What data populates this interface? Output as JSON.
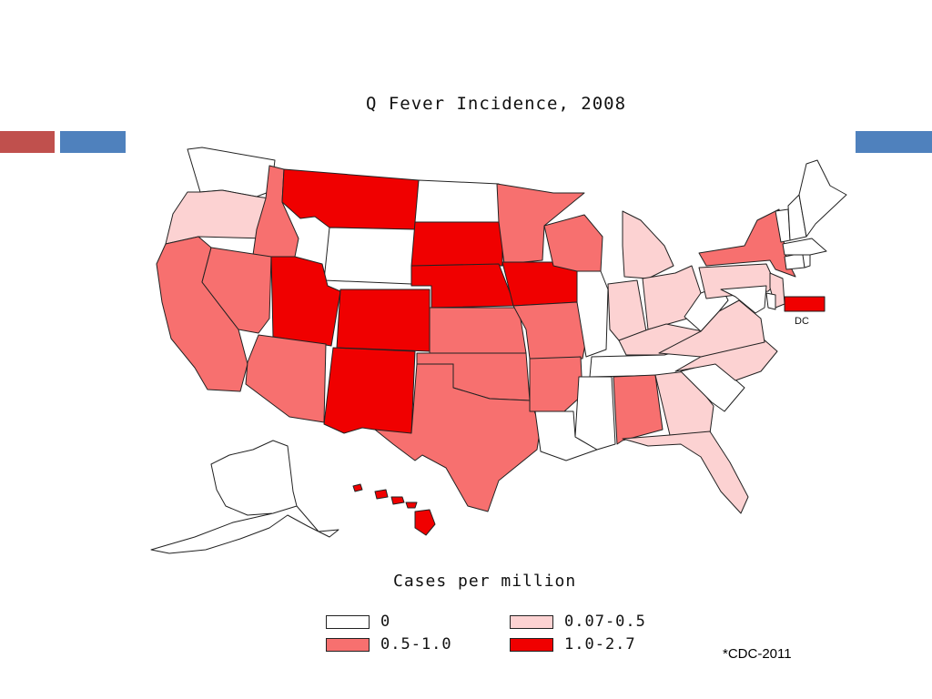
{
  "colors": {
    "zero": "#ffffff",
    "low": "#fcd2d2",
    "mid": "#f7706f",
    "high": "#f00000",
    "deco_red": "#c0504d",
    "deco_blue": "#4f81bd"
  },
  "map": {
    "title": "Q Fever Incidence, 2008",
    "dc_label": "DC"
  },
  "legend": {
    "title": "Cases per million",
    "items": [
      {
        "label": "0",
        "category": "zero"
      },
      {
        "label": "0.07-0.5",
        "category": "low"
      },
      {
        "label": "0.5-1.0",
        "category": "mid"
      },
      {
        "label": "1.0-2.7",
        "category": "high"
      }
    ]
  },
  "source": "*CDC-2011",
  "states": [
    {
      "name": "Washington",
      "category": "zero"
    },
    {
      "name": "Oregon",
      "category": "low"
    },
    {
      "name": "California",
      "category": "mid"
    },
    {
      "name": "Idaho",
      "category": "mid"
    },
    {
      "name": "Nevada",
      "category": "mid"
    },
    {
      "name": "Montana",
      "category": "high"
    },
    {
      "name": "Wyoming",
      "category": "zero"
    },
    {
      "name": "Utah",
      "category": "high"
    },
    {
      "name": "Colorado",
      "category": "high"
    },
    {
      "name": "Arizona",
      "category": "mid"
    },
    {
      "name": "New Mexico",
      "category": "high"
    },
    {
      "name": "North Dakota",
      "category": "zero"
    },
    {
      "name": "South Dakota",
      "category": "high"
    },
    {
      "name": "Nebraska",
      "category": "high"
    },
    {
      "name": "Kansas",
      "category": "mid"
    },
    {
      "name": "Oklahoma",
      "category": "mid"
    },
    {
      "name": "Texas",
      "category": "mid"
    },
    {
      "name": "Minnesota",
      "category": "mid"
    },
    {
      "name": "Iowa",
      "category": "high"
    },
    {
      "name": "Missouri",
      "category": "mid"
    },
    {
      "name": "Arkansas",
      "category": "mid"
    },
    {
      "name": "Louisiana",
      "category": "zero"
    },
    {
      "name": "Wisconsin",
      "category": "mid"
    },
    {
      "name": "Illinois",
      "category": "zero"
    },
    {
      "name": "Michigan",
      "category": "low"
    },
    {
      "name": "Indiana",
      "category": "low"
    },
    {
      "name": "Ohio",
      "category": "low"
    },
    {
      "name": "Kentucky",
      "category": "low"
    },
    {
      "name": "Tennessee",
      "category": "zero"
    },
    {
      "name": "Mississippi",
      "category": "zero"
    },
    {
      "name": "Alabama",
      "category": "mid"
    },
    {
      "name": "Georgia",
      "category": "low"
    },
    {
      "name": "Florida",
      "category": "low"
    },
    {
      "name": "South Carolina",
      "category": "zero"
    },
    {
      "name": "North Carolina",
      "category": "low"
    },
    {
      "name": "Virginia",
      "category": "low"
    },
    {
      "name": "West Virginia",
      "category": "zero"
    },
    {
      "name": "Pennsylvania",
      "category": "low"
    },
    {
      "name": "New York",
      "category": "mid"
    },
    {
      "name": "New Jersey",
      "category": "low"
    },
    {
      "name": "Delaware",
      "category": "zero"
    },
    {
      "name": "Maryland",
      "category": "zero"
    },
    {
      "name": "Connecticut",
      "category": "zero"
    },
    {
      "name": "Rhode Island",
      "category": "zero"
    },
    {
      "name": "Massachusetts",
      "category": "zero"
    },
    {
      "name": "Vermont",
      "category": "zero"
    },
    {
      "name": "New Hampshire",
      "category": "zero"
    },
    {
      "name": "Maine",
      "category": "zero"
    },
    {
      "name": "Alaska",
      "category": "zero"
    },
    {
      "name": "Hawaii",
      "category": "high"
    },
    {
      "name": "District of Columbia",
      "category": "high"
    }
  ]
}
